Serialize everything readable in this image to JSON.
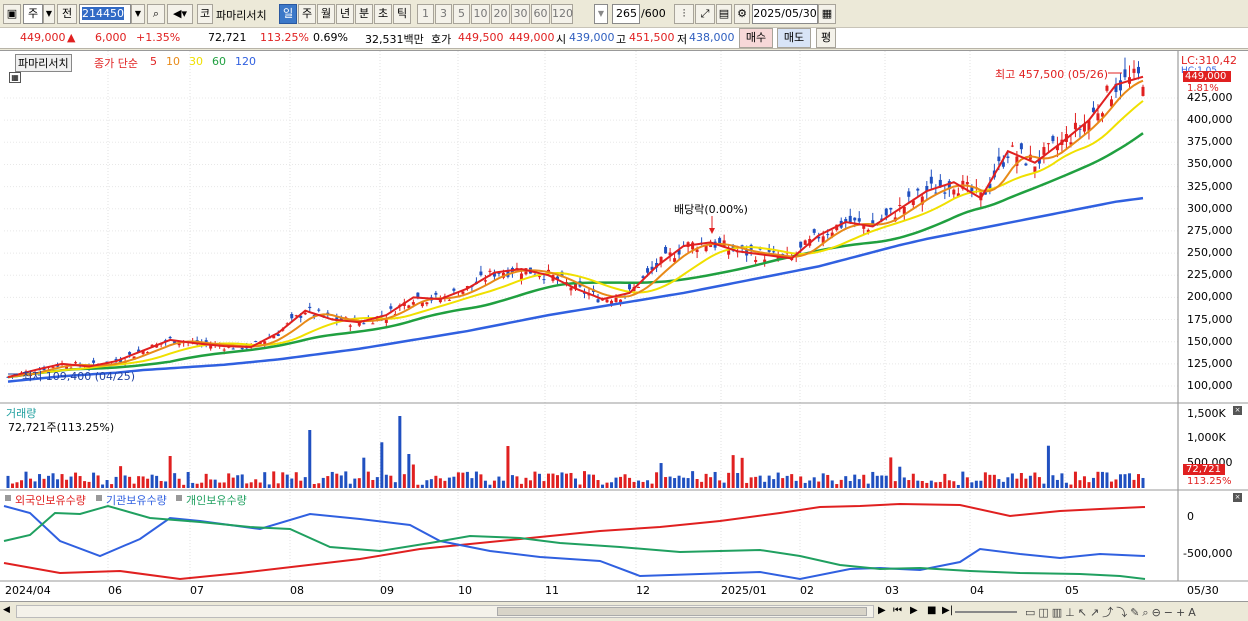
{
  "toolbar": {
    "market": "주",
    "prev": "전",
    "code": "214450",
    "name": "파마리서치",
    "corp_badge": "코",
    "periods": [
      {
        "label": "일",
        "selected": true
      },
      {
        "label": "주",
        "selected": false
      },
      {
        "label": "월",
        "selected": false
      },
      {
        "label": "년",
        "selected": false
      },
      {
        "label": "분",
        "selected": false
      },
      {
        "label": "초",
        "selected": false
      },
      {
        "label": "틱",
        "selected": false
      }
    ],
    "intervals": [
      "1",
      "3",
      "5",
      "10",
      "20",
      "30",
      "60",
      "120"
    ],
    "count": "265",
    "total": "/600",
    "date": "2025/05/30"
  },
  "quote": {
    "price": "449,000",
    "arrow": "▲",
    "change": "6,000",
    "change_pct": "+1.35%",
    "volume": "72,721",
    "vol_ratio": "113.25%",
    "turnover_pct": "0.69%",
    "amount": "32,531백만",
    "ask_label": "호가",
    "ask": "449,500",
    "bid": "449,000",
    "open_label": "시",
    "open": "439,000",
    "high_label": "고",
    "high": "451,500",
    "low_label": "저",
    "low": "438,000",
    "buy": "매수",
    "sell": "매도",
    "eval": "평"
  },
  "price_pane": {
    "name": "파마리서치",
    "legend_label": "종가 단순",
    "ma_periods": [
      "5",
      "10",
      "30",
      "60",
      "120"
    ],
    "ma_colors": [
      "#e02020",
      "#e88a18",
      "#f0e000",
      "#20a040",
      "#3060e0"
    ],
    "max_label": "최고 457,500 (05/26)",
    "min_label": "최저 109,400 (04/25)",
    "dividend_label": "배당락(0.00%)",
    "lc_label": "LC:310,42",
    "hc_label": "HC:1.05",
    "current_price": "449,000",
    "current_pct": "1.81%",
    "yticks": [
      "425,000",
      "400,000",
      "375,000",
      "350,000",
      "325,000",
      "300,000",
      "275,000",
      "250,000",
      "225,000",
      "200,000",
      "175,000",
      "150,000",
      "125,000",
      "100,000"
    ]
  },
  "volume_pane": {
    "title": "거래량",
    "subtitle": "72,721주(113.25%)",
    "yticks": [
      "1,500K",
      "1,000K",
      "500,000"
    ],
    "current": "72,721",
    "current_pct": "113.25%"
  },
  "holdings_pane": {
    "legend": [
      "외국인보유수량",
      "기관보유수량",
      "개인보유수량"
    ],
    "colors": [
      "#e02020",
      "#3060e0",
      "#20a060"
    ],
    "yticks": [
      "0",
      "-500,000"
    ]
  },
  "xaxis": {
    "labels": [
      "2024/04",
      "06",
      "07",
      "08",
      "09",
      "10",
      "11",
      "12",
      "2025/01",
      "02",
      "03",
      "04",
      "05",
      "05/30"
    ]
  },
  "chart_data": [
    {
      "type": "line",
      "title": "파마리서치",
      "note": "종가 단순 이동평균",
      "series": [
        {
          "name": "5",
          "values": [
            110000,
            118000,
            125000,
            122000,
            128000,
            140000,
            152000,
            148000,
            145000,
            144000,
            160000,
            185000,
            175000,
            172000,
            180000,
            200000,
            198000,
            210000,
            228000,
            232000,
            225000,
            210000,
            198000,
            205000,
            235000,
            258000,
            262000,
            252000,
            248000,
            244000,
            270000,
            285000,
            280000,
            300000,
            320000,
            330000,
            312000,
            365000,
            352000,
            375000,
            400000,
            440000,
            449000
          ]
        },
        {
          "name": "120",
          "values": [
            105000,
            108000,
            111000,
            113000,
            115000,
            118000,
            120000,
            122000,
            124000,
            127000,
            130000,
            134000,
            138000,
            142000,
            147000,
            152000,
            157000,
            162000,
            168000,
            174000,
            180000,
            185000,
            190000,
            195000,
            200000,
            205000,
            211000,
            217000,
            223000,
            229000,
            235000,
            243000,
            251000,
            259000,
            266000,
            272000,
            278000,
            284000,
            290000,
            296000,
            302000,
            308000,
            312000
          ]
        }
      ]
    },
    {
      "type": "bar",
      "title": "거래량",
      "note": "last bar 72,721주"
    },
    {
      "type": "line",
      "title": "보유수량",
      "series": [
        {
          "name": "외국인보유수량"
        },
        {
          "name": "기관보유수량"
        },
        {
          "name": "개인보유수량"
        }
      ]
    }
  ]
}
